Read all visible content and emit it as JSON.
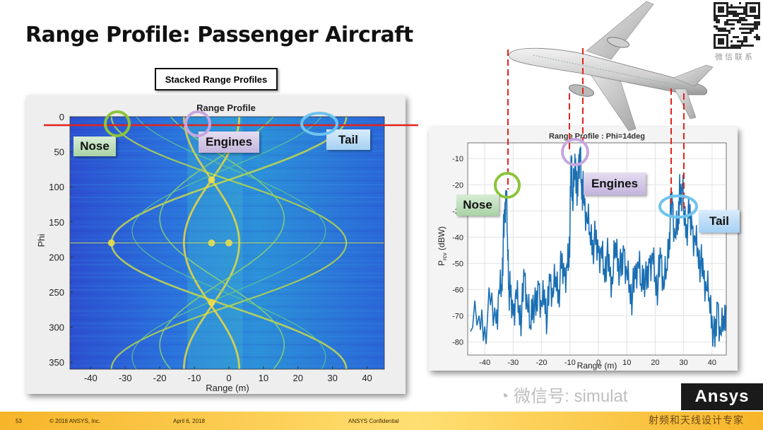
{
  "title": "Range Profile: Passenger Aircraft",
  "stacked_label": "Stacked Range Profiles",
  "colors": {
    "marker_red": "#e3231b",
    "nose_green": "#8cc43c",
    "engine_purple": "#b48bd0",
    "tail_blue": "#6ec3ee",
    "line_blue": "#1a6fb3"
  },
  "left_callouts": {
    "nose": "Nose",
    "engines": "Engines",
    "tail": "Tail"
  },
  "right_callouts": {
    "nose": "Nose",
    "engines": "Engines",
    "tail": "Tail"
  },
  "footer": {
    "page": "53",
    "copyright": "© 2018 ANSYS, Inc.",
    "date": "April 6, 2018",
    "confidential": "ANSYS Confidential"
  },
  "qr_caption": "微信联系",
  "watermark": "微信号: simulat",
  "watermark_logo": "Ansys",
  "watermark_bottom": "射频和天线设计专家",
  "chart_data": [
    {
      "type": "heatmap",
      "title": "Range Profile",
      "xlabel": "Range (m)",
      "ylabel": "Phi",
      "xlim": [
        -46,
        45
      ],
      "ylim": [
        0,
        360
      ],
      "xticks": [
        -40,
        -30,
        -20,
        -10,
        0,
        10,
        20,
        30,
        40
      ],
      "yticks": [
        0,
        50,
        100,
        150,
        200,
        250,
        300,
        350
      ],
      "colormap": "parula",
      "marker_phi": 14
    },
    {
      "type": "line",
      "title": "Range Profile : Phi=14deg",
      "xlabel": "Range (m)",
      "ylabel": "P_rcv (dBW)",
      "xlim": [
        -46,
        45
      ],
      "ylim": [
        -85,
        -4
      ],
      "xticks": [
        -40,
        -30,
        -20,
        -10,
        0,
        10,
        20,
        30,
        40
      ],
      "yticks": [
        -10,
        -20,
        -30,
        -40,
        -50,
        -60,
        -70,
        -80
      ],
      "grid": true,
      "x": [
        -45,
        -42,
        -40,
        -38,
        -36,
        -35,
        -34,
        -33.5,
        -33,
        -32.5,
        -32,
        -31.5,
        -31,
        -30,
        -29,
        -28,
        -27,
        -26,
        -25,
        -24,
        -23,
        -22,
        -21,
        -20,
        -19,
        -18,
        -17,
        -16,
        -15,
        -14,
        -13,
        -12,
        -11,
        -10.5,
        -10,
        -9.5,
        -9,
        -8.5,
        -8,
        -7.5,
        -7,
        -6.5,
        -6,
        -5.5,
        -5,
        -4,
        -3,
        -2,
        -1,
        0,
        1,
        2,
        3,
        4,
        5,
        6,
        7,
        8,
        9,
        10,
        11,
        12,
        13,
        14,
        15,
        16,
        17,
        18,
        19,
        20,
        21,
        22,
        23,
        24,
        25,
        25.5,
        26,
        27,
        28,
        28.5,
        29,
        29.5,
        30,
        31,
        32,
        33,
        34,
        35,
        36,
        37,
        38,
        39,
        40,
        41,
        42,
        43,
        44,
        45
      ],
      "y": [
        -76,
        -70,
        -74,
        -66,
        -73,
        -60,
        -58,
        -42,
        -34,
        -22,
        -40,
        -58,
        -63,
        -70,
        -60,
        -66,
        -70,
        -55,
        -67,
        -74,
        -62,
        -70,
        -58,
        -66,
        -60,
        -71,
        -57,
        -63,
        -55,
        -60,
        -52,
        -55,
        -50,
        -48,
        -36,
        -9,
        -30,
        -15,
        -10,
        -28,
        -12,
        -6,
        -18,
        -22,
        -28,
        -34,
        -38,
        -41,
        -43,
        -46,
        -44,
        -52,
        -47,
        -55,
        -58,
        -42,
        -48,
        -55,
        -45,
        -53,
        -58,
        -62,
        -56,
        -50,
        -58,
        -52,
        -60,
        -50,
        -46,
        -55,
        -58,
        -48,
        -60,
        -52,
        -38,
        -30,
        -26,
        -40,
        -33,
        -24,
        -27,
        -20,
        -30,
        -35,
        -33,
        -37,
        -40,
        -44,
        -50,
        -56,
        -60,
        -63,
        -70,
        -82,
        -65,
        -77,
        -70,
        -66
      ]
    }
  ]
}
